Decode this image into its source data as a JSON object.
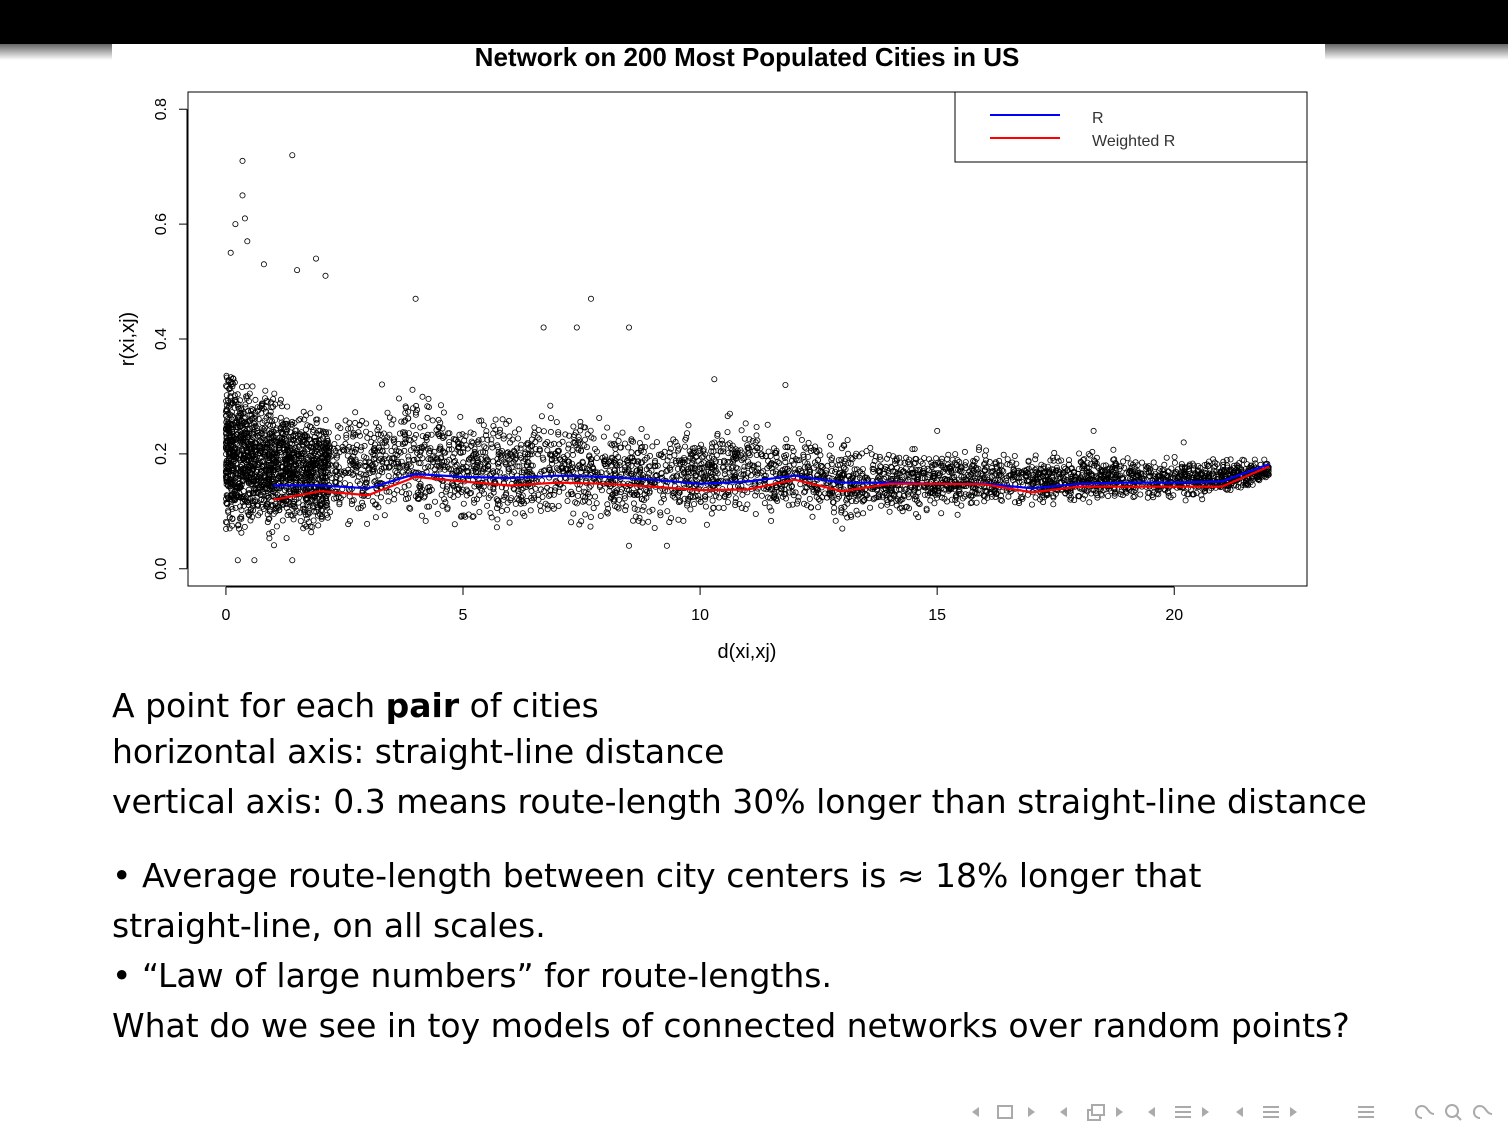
{
  "slide": {
    "lines": {
      "line1_pre": "A point for each ",
      "line1_bold": "pair",
      "line1_post": " of cities",
      "line2": "horizontal axis: straight-line distance",
      "line3": "vertical axis: 0.3 means route-length 30% longer than straight-line distance",
      "bullet1_a": "• Average route-length between city centers is ≈ 18% longer that",
      "bullet1_b": "straight-line, on all scales.",
      "bullet2": "• “Law of large numbers” for route-lengths.",
      "closing": "What do we see in toy models of connected networks over random points?"
    },
    "nav_icons": [
      "nav-prev-frame-icon",
      "nav-frame-icon",
      "nav-next-frame-icon",
      "nav-prev-subsection-icon",
      "nav-subsection-icon",
      "nav-next-subsection-icon",
      "nav-prev-section-icon",
      "nav-section-icon",
      "nav-next-section-icon",
      "nav-toc-icon",
      "nav-search-icon"
    ],
    "colors": {
      "nav": "#aaaaaa",
      "top_bar": "#000000"
    }
  },
  "chart_data": {
    "type": "scatter",
    "title": "Network on 200 Most Populated Cities in US",
    "xlabel": "d(xi,xj)",
    "ylabel": "r(xi,xj)",
    "xlim": [
      -0.8,
      22.8
    ],
    "ylim": [
      -0.03,
      0.83
    ],
    "x_ticks": [
      0,
      5,
      10,
      15,
      20
    ],
    "y_ticks": [
      0.0,
      0.2,
      0.4,
      0.6,
      0.8
    ],
    "x_tick_labels": [
      "0",
      "5",
      "10",
      "15",
      "20"
    ],
    "y_tick_labels": [
      "0.0",
      "0.2",
      "0.4",
      "0.6",
      "0.8"
    ],
    "grid": false,
    "legend": {
      "position": "top-right",
      "entries": [
        {
          "label": "R",
          "color": "#0000ff"
        },
        {
          "label": "Weighted R",
          "color": "#ff0000"
        }
      ]
    },
    "notable_points": [
      {
        "x": 0.35,
        "y": 0.71
      },
      {
        "x": 1.4,
        "y": 0.72
      },
      {
        "x": 0.35,
        "y": 0.65
      },
      {
        "x": 0.2,
        "y": 0.6
      },
      {
        "x": 0.4,
        "y": 0.61
      },
      {
        "x": 0.45,
        "y": 0.57
      },
      {
        "x": 0.1,
        "y": 0.55
      },
      {
        "x": 1.9,
        "y": 0.54
      },
      {
        "x": 0.8,
        "y": 0.53
      },
      {
        "x": 2.1,
        "y": 0.51
      },
      {
        "x": 1.5,
        "y": 0.52
      },
      {
        "x": 4.0,
        "y": 0.47
      },
      {
        "x": 7.7,
        "y": 0.47
      },
      {
        "x": 8.5,
        "y": 0.42
      },
      {
        "x": 6.7,
        "y": 0.42
      },
      {
        "x": 7.4,
        "y": 0.42
      },
      {
        "x": 10.3,
        "y": 0.33
      },
      {
        "x": 11.8,
        "y": 0.32
      },
      {
        "x": 15.0,
        "y": 0.24
      },
      {
        "x": 18.3,
        "y": 0.24
      },
      {
        "x": 20.2,
        "y": 0.22
      },
      {
        "x": 0.25,
        "y": 0.015
      },
      {
        "x": 0.6,
        "y": 0.015
      },
      {
        "x": 1.4,
        "y": 0.015
      },
      {
        "x": 8.5,
        "y": 0.04
      },
      {
        "x": 9.3,
        "y": 0.04
      },
      {
        "x": 13.0,
        "y": 0.07
      },
      {
        "x": 14.6,
        "y": 0.09
      },
      {
        "x": 21.7,
        "y": 0.19
      },
      {
        "x": 21.9,
        "y": 0.19
      }
    ],
    "scatter_envelope": [
      {
        "x": 0.0,
        "lower": 0.02,
        "upper": 0.4
      },
      {
        "x": 1.0,
        "lower": 0.03,
        "upper": 0.32
      },
      {
        "x": 2.0,
        "lower": 0.04,
        "upper": 0.3
      },
      {
        "x": 3.0,
        "lower": 0.04,
        "upper": 0.32
      },
      {
        "x": 4.0,
        "lower": 0.05,
        "upper": 0.34
      },
      {
        "x": 5.0,
        "lower": 0.05,
        "upper": 0.3
      },
      {
        "x": 6.0,
        "lower": 0.05,
        "upper": 0.28
      },
      {
        "x": 7.0,
        "lower": 0.06,
        "upper": 0.3
      },
      {
        "x": 8.0,
        "lower": 0.05,
        "upper": 0.28
      },
      {
        "x": 9.0,
        "lower": 0.06,
        "upper": 0.27
      },
      {
        "x": 10.0,
        "lower": 0.06,
        "upper": 0.28
      },
      {
        "x": 11.0,
        "lower": 0.07,
        "upper": 0.27
      },
      {
        "x": 12.0,
        "lower": 0.07,
        "upper": 0.26
      },
      {
        "x": 13.0,
        "lower": 0.07,
        "upper": 0.24
      },
      {
        "x": 14.0,
        "lower": 0.08,
        "upper": 0.23
      },
      {
        "x": 15.0,
        "lower": 0.09,
        "upper": 0.22
      },
      {
        "x": 16.0,
        "lower": 0.09,
        "upper": 0.22
      },
      {
        "x": 17.0,
        "lower": 0.1,
        "upper": 0.21
      },
      {
        "x": 18.0,
        "lower": 0.1,
        "upper": 0.21
      },
      {
        "x": 19.0,
        "lower": 0.11,
        "upper": 0.21
      },
      {
        "x": 20.0,
        "lower": 0.11,
        "upper": 0.2
      },
      {
        "x": 21.0,
        "lower": 0.12,
        "upper": 0.2
      },
      {
        "x": 22.0,
        "lower": 0.15,
        "upper": 0.19
      }
    ],
    "series": [
      {
        "name": "R",
        "color": "#0000ff",
        "x": [
          1,
          2,
          3,
          4,
          5,
          6,
          7,
          8,
          9,
          10,
          11,
          12,
          13,
          14,
          15,
          16,
          17,
          18,
          19,
          20,
          21,
          22
        ],
        "values": [
          0.145,
          0.145,
          0.14,
          0.165,
          0.16,
          0.158,
          0.162,
          0.16,
          0.155,
          0.148,
          0.152,
          0.162,
          0.15,
          0.15,
          0.148,
          0.148,
          0.14,
          0.148,
          0.15,
          0.15,
          0.152,
          0.182
        ]
      },
      {
        "name": "Weighted R",
        "color": "#ff0000",
        "x": [
          1,
          2,
          3,
          4,
          5,
          6,
          7,
          8,
          9,
          10,
          11,
          12,
          13,
          14,
          15,
          16,
          17,
          18,
          19,
          20,
          21,
          22
        ],
        "values": [
          0.12,
          0.135,
          0.128,
          0.16,
          0.152,
          0.145,
          0.15,
          0.148,
          0.143,
          0.137,
          0.138,
          0.155,
          0.135,
          0.148,
          0.148,
          0.147,
          0.133,
          0.143,
          0.143,
          0.143,
          0.143,
          0.178
        ]
      }
    ]
  }
}
